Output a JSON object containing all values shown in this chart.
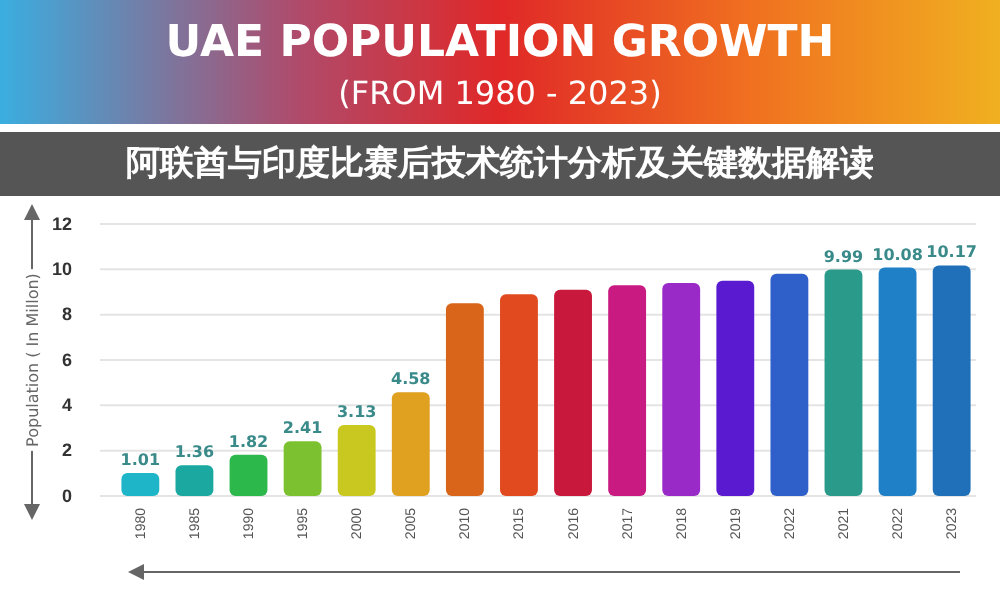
{
  "chart_data": {
    "type": "bar",
    "title": "UAE POPULATION GROWTH",
    "subtitle": "(FROM 1980 - 2023)",
    "ylabel": "Population ( In Millon)",
    "annotations": [
      "阿联酋与印度比赛后技术统计分析及关键数据解读"
    ],
    "categories": [
      "1980",
      "1985",
      "1990",
      "1995",
      "2000",
      "2005",
      "2010",
      "2015",
      "2016",
      "2017",
      "2018",
      "2019",
      "2022",
      "2021",
      "2022",
      "2023"
    ],
    "values": [
      1.01,
      1.36,
      1.82,
      2.41,
      3.13,
      4.58,
      8.5,
      8.9,
      9.1,
      9.3,
      9.4,
      9.5,
      9.8,
      9.99,
      10.08,
      10.17
    ],
    "value_labels": [
      "1.01",
      "1.36",
      "1.82",
      "2.41",
      "3.13",
      "4.58",
      null,
      null,
      null,
      null,
      null,
      null,
      null,
      "9.99",
      "10.08",
      "10.17"
    ],
    "colors": [
      "#1fb5c9",
      "#1aa8a0",
      "#2cb84a",
      "#7cc230",
      "#c8c820",
      "#e0a020",
      "#d8651a",
      "#e04a1e",
      "#c8183c",
      "#c81a80",
      "#9a2ac8",
      "#5a1ad0",
      "#2f5fc8",
      "#2a9a8a",
      "#1f80c8",
      "#1f70b8"
    ],
    "ylim": [
      0,
      12
    ],
    "yticks": [
      0,
      2,
      4,
      6,
      8,
      10,
      12
    ],
    "grid": "y"
  }
}
